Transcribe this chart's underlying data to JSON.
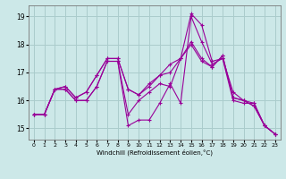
{
  "xlabel": "Windchill (Refroidissement éolien,°C)",
  "background_color": "#cce8e8",
  "grid_color": "#aacccc",
  "line_color": "#990099",
  "xlim": [
    -0.5,
    23.5
  ],
  "ylim": [
    14.6,
    19.4
  ],
  "xticks": [
    0,
    1,
    2,
    3,
    4,
    5,
    6,
    7,
    8,
    9,
    10,
    11,
    12,
    13,
    14,
    15,
    16,
    17,
    18,
    19,
    20,
    21,
    22,
    23
  ],
  "yticks": [
    15,
    16,
    17,
    18,
    19
  ],
  "series": [
    {
      "x": [
        0,
        1,
        2,
        3,
        4,
        5,
        6,
        7,
        8,
        9,
        10,
        11,
        12,
        13,
        14,
        15,
        16,
        17,
        18,
        19,
        20,
        21,
        22,
        23
      ],
      "y": [
        15.5,
        15.5,
        16.4,
        16.4,
        16.0,
        16.0,
        16.5,
        17.4,
        17.4,
        15.1,
        15.3,
        15.3,
        15.9,
        16.6,
        15.9,
        19.0,
        18.1,
        17.3,
        17.5,
        16.0,
        15.9,
        15.9,
        15.1,
        14.8
      ]
    },
    {
      "x": [
        0,
        1,
        2,
        3,
        4,
        5,
        6,
        7,
        8,
        9,
        10,
        11,
        12,
        13,
        14,
        15,
        16,
        17,
        18,
        19,
        20,
        21,
        22,
        23
      ],
      "y": [
        15.5,
        15.5,
        16.4,
        16.5,
        16.1,
        16.3,
        16.9,
        17.5,
        17.5,
        16.4,
        16.2,
        16.6,
        16.9,
        17.3,
        17.5,
        18.1,
        17.5,
        17.2,
        17.6,
        16.1,
        16.0,
        15.8,
        15.1,
        14.8
      ]
    },
    {
      "x": [
        0,
        1,
        2,
        3,
        4,
        5,
        6,
        7,
        8,
        9,
        10,
        11,
        12,
        13,
        14,
        15,
        16,
        17,
        18,
        19,
        20,
        21,
        22,
        23
      ],
      "y": [
        15.5,
        15.5,
        16.4,
        16.4,
        16.0,
        16.0,
        16.5,
        17.4,
        17.4,
        15.5,
        16.0,
        16.3,
        16.6,
        16.5,
        17.5,
        19.1,
        18.7,
        17.4,
        17.5,
        16.3,
        16.0,
        15.9,
        15.1,
        14.8
      ]
    },
    {
      "x": [
        0,
        1,
        2,
        3,
        4,
        5,
        6,
        7,
        8,
        9,
        10,
        11,
        12,
        13,
        14,
        15,
        16,
        17,
        18,
        19,
        20,
        21,
        22,
        23
      ],
      "y": [
        15.5,
        15.5,
        16.4,
        16.5,
        16.1,
        16.3,
        16.9,
        17.5,
        17.5,
        16.4,
        16.2,
        16.5,
        16.9,
        17.0,
        17.5,
        18.0,
        17.4,
        17.2,
        17.6,
        16.1,
        16.0,
        15.8,
        15.1,
        14.8
      ]
    }
  ]
}
